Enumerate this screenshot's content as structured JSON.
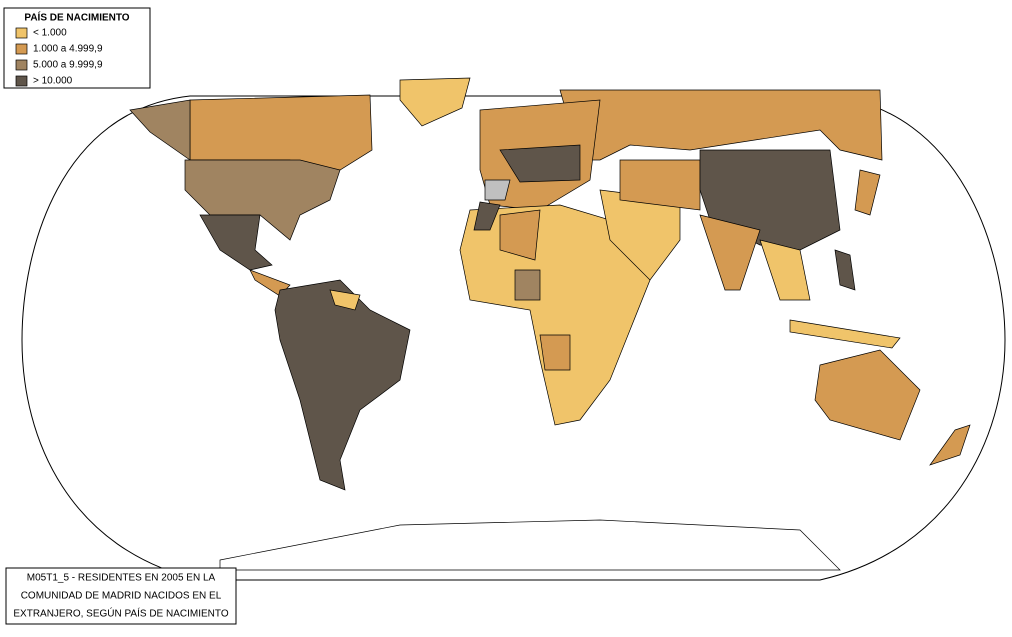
{
  "legend": {
    "title": "PAÍS DE NACIMIENTO",
    "items": [
      {
        "label": "< 1.000",
        "color": "#f0c46a"
      },
      {
        "label": "1.000 a 4.999,9",
        "color": "#d49a52"
      },
      {
        "label": "5.000 a 9.999,9",
        "color": "#a08461"
      },
      {
        "label": "> 10.000",
        "color": "#5f554a"
      }
    ]
  },
  "caption": {
    "lines": [
      "M05T1_5 - RESIDENTES EN 2005 EN LA",
      "COMUNIDAD DE MADRID NACIDOS EN EL",
      "EXTRANJERO, SEGÚN PAÍS DE NACIMIENTO"
    ]
  }
}
